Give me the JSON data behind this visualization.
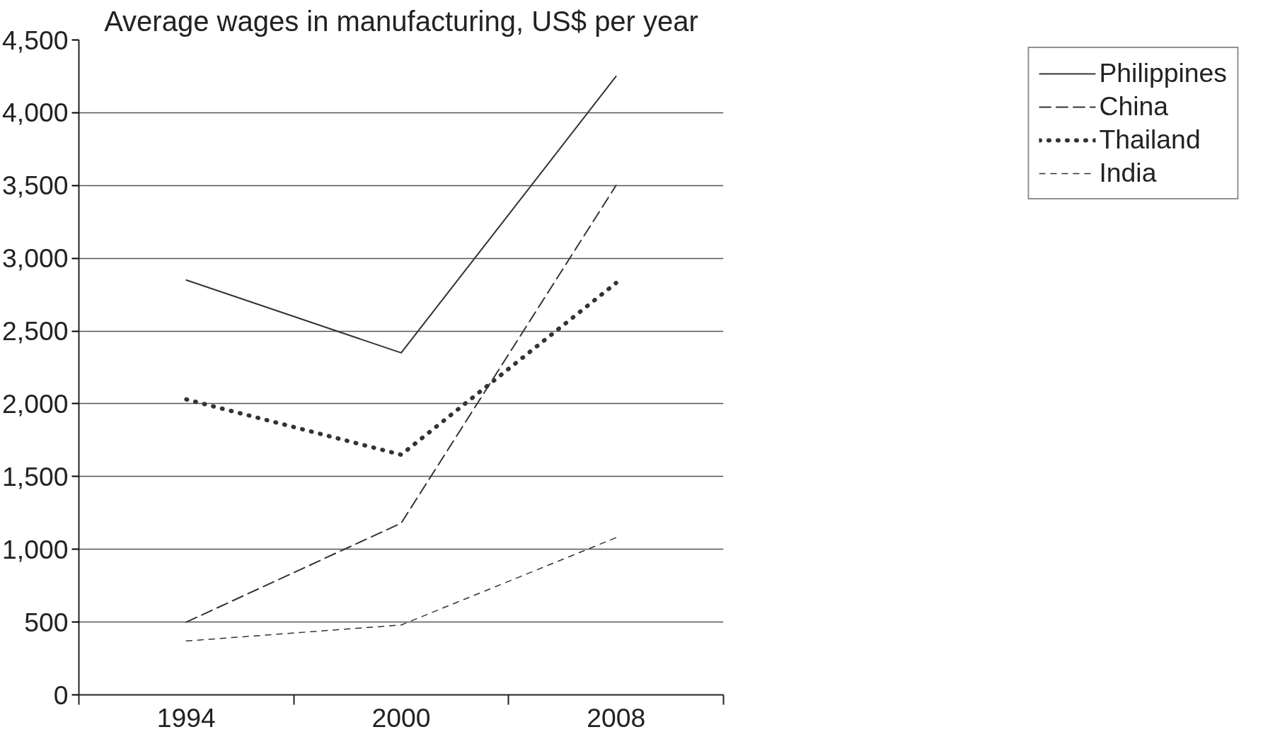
{
  "chart_data": {
    "type": "line",
    "title": "Average wages in manufacturing, US$ per year",
    "categories": [
      "1994",
      "2000",
      "2008"
    ],
    "series": [
      {
        "name": "Philippines",
        "color": "#333333",
        "line_style": "solid",
        "values": [
          2850,
          2350,
          4250
        ]
      },
      {
        "name": "China",
        "color": "#333333",
        "line_style": "dashed",
        "values": [
          500,
          1180,
          3500
        ]
      },
      {
        "name": "Thailand",
        "color": "#333333",
        "line_style": "dotted",
        "values": [
          2030,
          1650,
          2830
        ]
      },
      {
        "name": "India",
        "color": "#333333",
        "line_style": "dashed",
        "values": [
          370,
          480,
          1080
        ]
      }
    ],
    "ylim": [
      0,
      4500
    ],
    "yticks": [
      {
        "value": 0,
        "label": "0"
      },
      {
        "value": 500,
        "label": "500"
      },
      {
        "value": 1000,
        "label": "1,000"
      },
      {
        "value": 1500,
        "label": "1,500"
      },
      {
        "value": 2000,
        "label": "2,000"
      },
      {
        "value": 2500,
        "label": "2,500"
      },
      {
        "value": 3000,
        "label": "3,000"
      },
      {
        "value": 3500,
        "label": "3,500"
      },
      {
        "value": 4000,
        "label": "4,000"
      },
      {
        "value": 4500,
        "label": "4,500"
      }
    ],
    "grid": "y",
    "legend": "right",
    "marker": "none"
  }
}
